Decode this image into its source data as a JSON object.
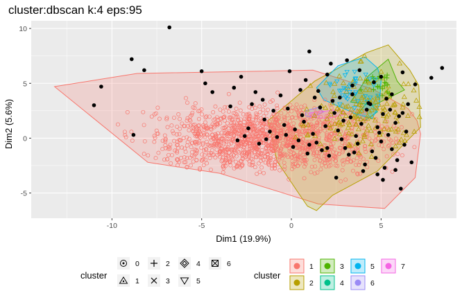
{
  "chart_data": {
    "type": "scatter",
    "title": "cluster:dbscan k:4 eps:95",
    "xlabel": "Dim1 (19.9%)",
    "ylabel": "Dim2 (5.6%)",
    "xlim": [
      -14.5,
      9.2
    ],
    "ylim": [
      -7.3,
      10.7
    ],
    "x_ticks": [
      -10,
      -5,
      0,
      5
    ],
    "y_ticks": [
      -5,
      0,
      5,
      10
    ],
    "grid": true,
    "legend_position": "bottom",
    "shape_legend": {
      "title": "cluster",
      "entries": [
        {
          "label": "0",
          "shape": "circle-dot"
        },
        {
          "label": "1",
          "shape": "triangle-dot"
        },
        {
          "label": "2",
          "shape": "plus"
        },
        {
          "label": "3",
          "shape": "cross"
        },
        {
          "label": "4",
          "shape": "diamond-dot"
        },
        {
          "label": "5",
          "shape": "triangle-down"
        },
        {
          "label": "6",
          "shape": "square-cross"
        }
      ]
    },
    "fill_legend": {
      "title": "cluster",
      "entries": [
        {
          "label": "1",
          "color": "#F8766D"
        },
        {
          "label": "2",
          "color": "#B79F00"
        },
        {
          "label": "3",
          "color": "#4DB300"
        },
        {
          "label": "4",
          "color": "#00C08B"
        },
        {
          "label": "5",
          "color": "#00B4EF"
        },
        {
          "label": "6",
          "color": "#9A8AF5"
        },
        {
          "label": "7",
          "color": "#F564E3"
        }
      ]
    },
    "hulls": [
      {
        "cluster": "1",
        "color": "#F8766D",
        "points": [
          [
            -13.2,
            4.7
          ],
          [
            -8.6,
            5.9
          ],
          [
            1.2,
            6.2
          ],
          [
            4.5,
            4.5
          ],
          [
            6.5,
            2.7
          ],
          [
            7.0,
            1.6
          ],
          [
            7.2,
            0.4
          ],
          [
            6.9,
            -3.6
          ],
          [
            5.2,
            -6.4
          ],
          [
            1.5,
            -6.0
          ],
          [
            -4.0,
            -3.2
          ],
          [
            -8.0,
            -2.2
          ]
        ]
      },
      {
        "cluster": "2",
        "color": "#B79F00",
        "points": [
          [
            -1.3,
            1.6
          ],
          [
            1.3,
            5.2
          ],
          [
            4.2,
            7.8
          ],
          [
            5.4,
            8.5
          ],
          [
            6.6,
            6.2
          ],
          [
            7.1,
            4.8
          ],
          [
            7.2,
            1.0
          ],
          [
            4.8,
            -3.0
          ],
          [
            2.3,
            -5.2
          ],
          [
            1.4,
            -6.6
          ],
          [
            0.9,
            -6.2
          ],
          [
            0.6,
            -5.5
          ],
          [
            -0.8,
            -2.1
          ]
        ]
      },
      {
        "cluster": "3",
        "color": "#4DB300",
        "points": [
          [
            3.3,
            3.3
          ],
          [
            4.3,
            5.7
          ],
          [
            5.4,
            7.2
          ],
          [
            5.9,
            5.2
          ],
          [
            6.3,
            4.4
          ],
          [
            4.6,
            3.0
          ]
        ]
      },
      {
        "cluster": "4",
        "color": "#00C08B",
        "points": [
          [
            3.6,
            2.0
          ],
          [
            4.3,
            3.4
          ],
          [
            4.8,
            2.4
          ],
          [
            4.1,
            1.6
          ]
        ]
      },
      {
        "cluster": "5",
        "color": "#00B4EF",
        "points": [
          [
            1.4,
            4.6
          ],
          [
            2.6,
            6.6
          ],
          [
            4.1,
            7.4
          ],
          [
            4.8,
            6.4
          ],
          [
            5.0,
            5.3
          ],
          [
            4.9,
            3.0
          ],
          [
            4.5,
            1.8
          ],
          [
            3.6,
            2.2
          ],
          [
            1.8,
            3.5
          ]
        ]
      },
      {
        "cluster": "6",
        "color": "#9A8AF5",
        "points": [
          [
            0.8,
            2.5
          ],
          [
            1.5,
            2.8
          ],
          [
            1.8,
            2.4
          ],
          [
            1.2,
            1.9
          ],
          [
            0.8,
            2.0
          ]
        ]
      },
      {
        "cluster": "7",
        "color": "#F564E3",
        "points": [
          [
            1.0,
            2.3
          ],
          [
            2.6,
            2.6
          ],
          [
            3.1,
            2.2
          ],
          [
            2.0,
            1.8
          ],
          [
            1.1,
            1.9
          ]
        ]
      }
    ],
    "series": [
      {
        "name": "0",
        "color": "#000000",
        "shape": "circle",
        "x": [
          -6.8,
          -8.9,
          -8.2,
          -10.6,
          -11.0,
          -8.8,
          -5.0,
          -2.8,
          -0.1,
          0.8,
          1.5,
          2.0,
          2.7,
          3.4,
          4.3,
          5.0,
          5.6,
          6.2,
          6.9,
          7.8,
          8.4,
          1.0,
          2.2,
          3.1,
          3.8,
          4.6,
          5.3,
          -1.6,
          -2.2,
          -3.4,
          -4.4,
          -4.8,
          -3.2,
          -2.0,
          -0.6,
          0.5,
          1.3,
          2.3,
          3.4,
          4.4,
          5.5,
          6.2,
          6.5,
          -1.0,
          -0.2,
          0.6,
          1.6,
          2.4,
          3.3,
          4.2,
          5.1,
          6.0,
          -1.5,
          -0.4,
          0.7,
          1.9,
          2.9,
          3.9,
          4.8,
          5.8,
          -2.4,
          -1.2,
          0.2,
          1.2,
          2.6,
          3.6,
          4.9,
          5.4,
          6.4,
          -0.8,
          0.4,
          1.4,
          2.8,
          3.7,
          5.0,
          6.3,
          0.1,
          1.7,
          3.0,
          4.5,
          5.6,
          -3.0,
          -1.8,
          0.9,
          2.1,
          3.5,
          4.7,
          5.9,
          6.7,
          -2.6,
          -1.4,
          -0.3,
          1.0,
          2.0,
          3.2,
          4.1,
          5.2,
          4.0,
          5.1,
          6.1,
          5.8,
          4.8,
          2.5
        ],
        "y": [
          10.1,
          7.2,
          6.2,
          4.7,
          3.0,
          0.3,
          6.1,
          5.6,
          6.1,
          5.3,
          4.3,
          5.8,
          3.7,
          4.8,
          3.2,
          5.6,
          4.0,
          6.0,
          4.9,
          5.5,
          6.4,
          7.9,
          6.8,
          7.1,
          6.2,
          5.1,
          3.6,
          3.5,
          3.1,
          2.9,
          4.2,
          5.0,
          4.6,
          4.2,
          3.9,
          4.4,
          3.7,
          3.4,
          4.0,
          3.1,
          2.6,
          2.3,
          3.1,
          2.5,
          2.7,
          2.1,
          2.8,
          2.3,
          1.9,
          2.6,
          2.2,
          2.0,
          1.7,
          1.2,
          1.5,
          1.1,
          1.6,
          1.3,
          1.0,
          1.4,
          0.9,
          0.6,
          0.8,
          0.4,
          0.7,
          0.2,
          0.5,
          0.3,
          0.6,
          0.1,
          -0.2,
          -0.4,
          -0.1,
          -0.5,
          -0.3,
          -0.6,
          -0.8,
          -1.1,
          -0.9,
          -1.2,
          -1.0,
          -0.2,
          -0.5,
          -1.4,
          -1.6,
          -1.3,
          -1.8,
          -2.0,
          -2.2,
          0.2,
          -0.1,
          0.3,
          -0.6,
          -0.9,
          -1.5,
          -2.4,
          -2.7,
          -3.0,
          -3.8,
          -4.6,
          -2.9,
          -3.3,
          -3.6
        ]
      }
    ]
  }
}
